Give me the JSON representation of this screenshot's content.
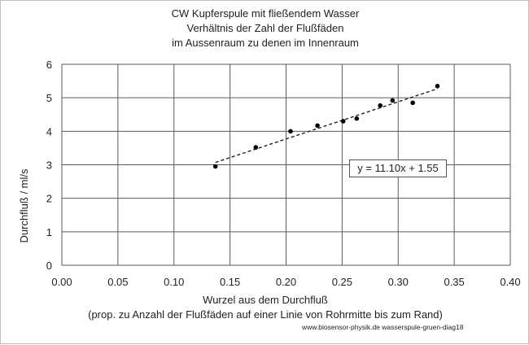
{
  "chart_data": {
    "type": "scatter",
    "title": [
      "CW Kupferspule mit fließendem Wasser",
      "Verhältnis der Zahl der Flußfäden",
      "im Aussenraum zu denen im Innenraum"
    ],
    "xlabel": "Wurzel aus dem Durchfluß",
    "xlabel_sub": "(prop. zu Anzahl der Flußfäden auf einer Linie von Rohrmitte bis zum Rand)",
    "ylabel": "Durchfluß  /  ml/s",
    "xlim": [
      0.0,
      0.4
    ],
    "ylim": [
      0,
      6
    ],
    "xticks": [
      "0.00",
      "0.05",
      "0.10",
      "0.15",
      "0.20",
      "0.25",
      "0.30",
      "0.35",
      "0.40"
    ],
    "yticks": [
      "0",
      "1",
      "2",
      "3",
      "4",
      "5",
      "6"
    ],
    "grid": true,
    "series": [
      {
        "x": [
          0.137,
          0.173,
          0.204,
          0.228,
          0.251,
          0.263,
          0.284,
          0.295,
          0.313,
          0.335
        ],
        "y": [
          2.95,
          3.52,
          4.0,
          4.17,
          4.3,
          4.38,
          4.77,
          4.92,
          4.85,
          5.35
        ]
      }
    ],
    "trendline": {
      "type": "linear",
      "slope": 11.1,
      "intercept": 1.55,
      "x_range": [
        0.137,
        0.335
      ],
      "label": "y = 11.10x + 1.55",
      "style": "dashed"
    },
    "credit": "www.biosensor-physik.de  wasserspule-gruen-diag18"
  }
}
